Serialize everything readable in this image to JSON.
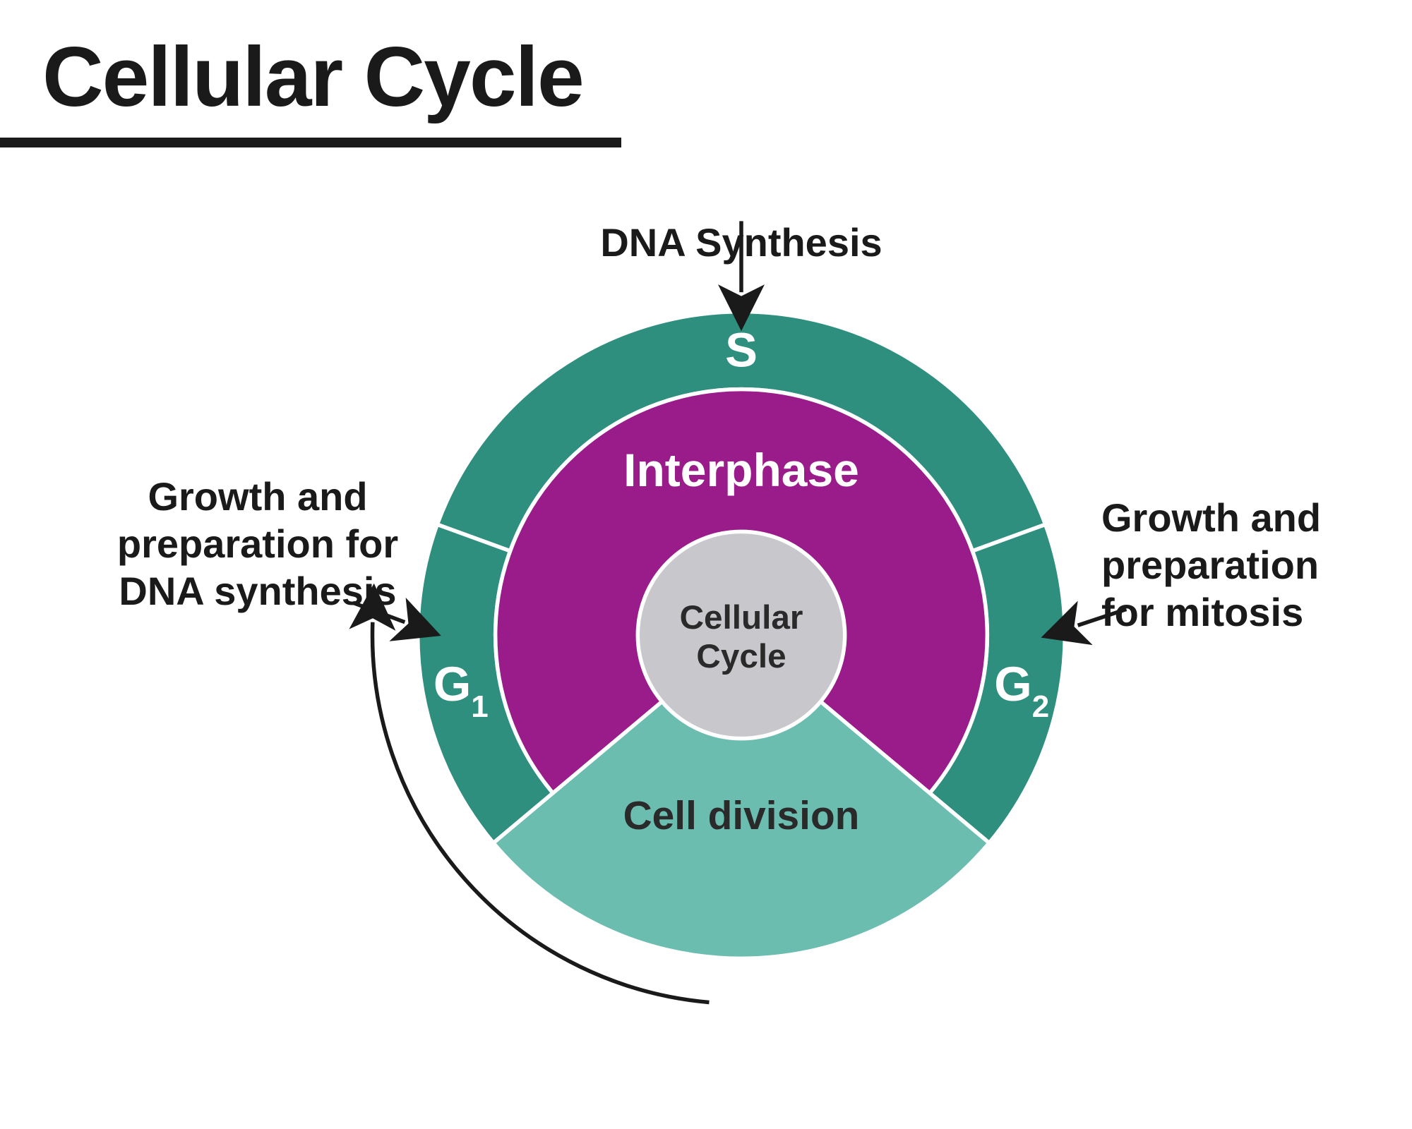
{
  "title": "Cellular Cycle",
  "diagram": {
    "type": "radial-cycle",
    "background_color": "#ffffff",
    "title_color": "#1a1a1a",
    "underline_color": "#1a1a1a",
    "outer_ring": {
      "radius_outer": 500,
      "radius_inner": 380,
      "stroke": "#ffffff",
      "stroke_width": 6,
      "fill": "#2f8f7f",
      "segments": [
        {
          "id": "S",
          "label": "S",
          "start_deg": 200,
          "end_deg": 340,
          "subscript": ""
        },
        {
          "id": "G2",
          "label": "G",
          "start_deg": 340,
          "end_deg": 40,
          "subscript": "2"
        },
        {
          "id": "M",
          "label": "",
          "start_deg": 40,
          "end_deg": 140,
          "subscript": ""
        },
        {
          "id": "G1",
          "label": "G",
          "start_deg": 140,
          "end_deg": 200,
          "subscript": "1"
        }
      ]
    },
    "inner_disc": {
      "radius": 380,
      "interphase": {
        "fill": "#9a1b8a",
        "label": "Interphase",
        "label_color": "#ffffff"
      },
      "cell_division": {
        "fill": "#6bbdb0",
        "label": "Cell division",
        "label_color": "#2a2a2a",
        "start_deg": 40,
        "end_deg": 140
      }
    },
    "center": {
      "radius": 160,
      "fill": "#c8c8cc",
      "label_line1": "Cellular",
      "label_line2": "Cycle"
    },
    "annotations": [
      {
        "id": "dna",
        "text": "DNA Synthesis",
        "anchor": "top"
      },
      {
        "id": "g1",
        "text": "Growth and\npreparation for\nDNA synthesis",
        "anchor": "left"
      },
      {
        "id": "g2",
        "text": "Growth and\npreparation\nfor mitosis",
        "anchor": "right"
      }
    ],
    "cycle_arrow": {
      "stroke": "#1a1a1a",
      "width": 6
    }
  }
}
